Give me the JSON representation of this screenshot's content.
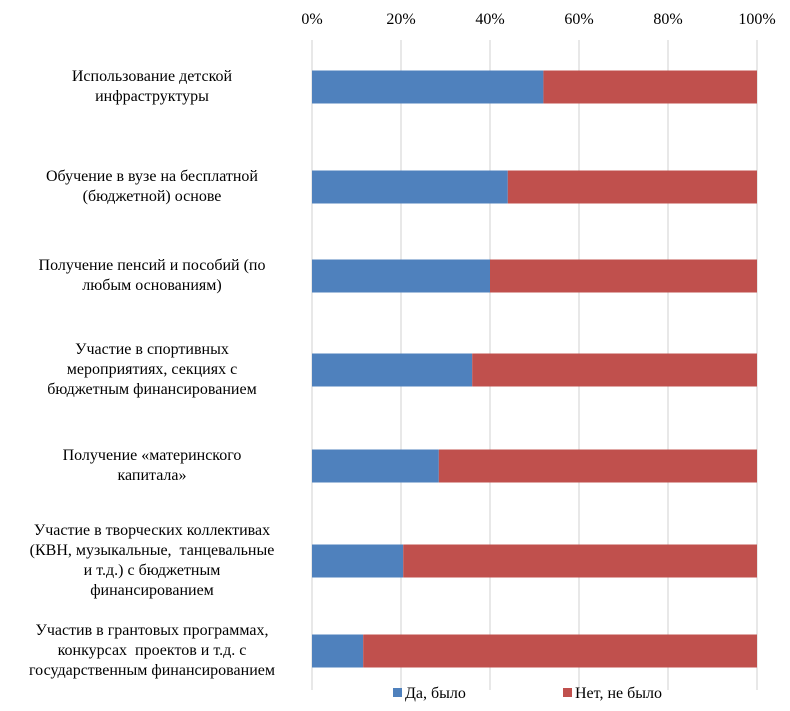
{
  "chart_data": {
    "type": "bar",
    "orientation": "horizontal",
    "stacked": "percent",
    "categories": [
      "Использование детской инфраструктуры",
      "Обучение в вузе на бесплатной (бюджетной) основе",
      "Получение пенсий и пособий (по любым основаниям)",
      "Участие в спортивных мероприятиях, секциях с бюджетным финансированием",
      "Получение «материнского капитала»",
      "Участие в творческих коллективах (КВН, музыкальные, танцевальные и т.д.) с бюджетным финансированием",
      "Участив в грантовых программах, конкурсах проектов и т.д. с государственным финансированием"
    ],
    "category_lines": [
      [
        "Использование детской",
        "инфраструктуры"
      ],
      [
        "Обучение в вузе на бесплатной",
        "(бюджетной) основе"
      ],
      [
        "Получение пенсий и пособий (по",
        "любым основаниям)"
      ],
      [
        "Участие в спортивных",
        "мероприятиях, секциях с",
        "бюджетным финансированием"
      ],
      [
        "Получение «материнского",
        "капитала»"
      ],
      [
        "Участие в творческих коллективах",
        "(КВН, музыкальные,  танцевальные",
        "и т.д.) с бюджетным",
        "финансированием"
      ],
      [
        "Участив в грантовых программах,",
        "конкурсах  проектов и т.д. с",
        "государственным финансированием"
      ]
    ],
    "series": [
      {
        "name": "Да, было",
        "values": [
          52,
          44,
          40,
          36,
          28.5,
          20.5,
          11.5
        ]
      },
      {
        "name": "Нет, не было",
        "values": [
          48,
          56,
          60,
          64,
          71.5,
          79.5,
          88.5
        ]
      }
    ],
    "xlim": [
      0,
      100
    ],
    "x_ticks": [
      "0%",
      "20%",
      "40%",
      "60%",
      "80%",
      "100%"
    ],
    "x_axis_position": "top",
    "grid": true,
    "legend_position": "bottom",
    "colors": {
      "Да, было": "#4F81BD",
      "Нет, не было": "#C0504D",
      "grid": "#D9D9D9"
    }
  }
}
